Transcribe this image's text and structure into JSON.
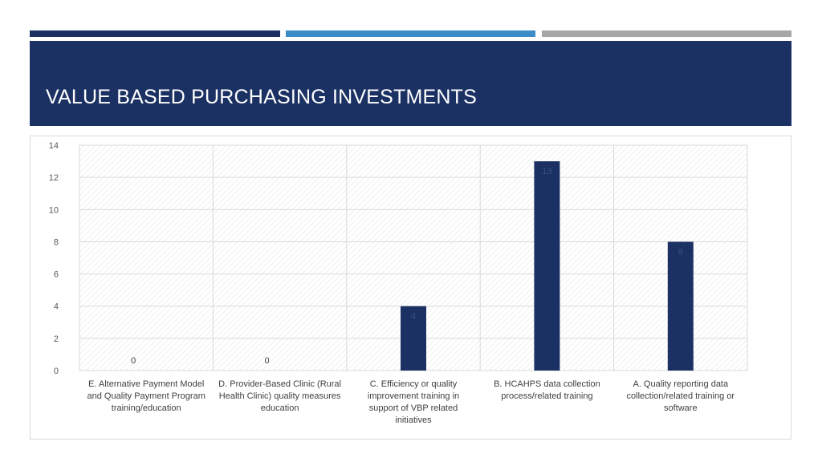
{
  "slide": {
    "title": "VALUE BASED PURCHASING INVESTMENTS"
  },
  "colors": {
    "primary": "#1c3163",
    "accent": "#3b8cc8",
    "neutral": "#a6a6a6",
    "bar": "#1c3163"
  },
  "chart_data": {
    "type": "bar",
    "categories": [
      "E. Alternative Payment Model and Quality Payment Program training/education",
      "D. Provider-Based Clinic (Rural Health Clinic) quality measures education",
      "C. Efficiency or quality improvement training in support of VBP related initiatives",
      "B. HCAHPS data collection process/related training",
      "A. Quality reporting data collection/related training or software"
    ],
    "category_lines": [
      [
        "E. Alternative Payment Model",
        "and Quality Payment Program",
        "training/education"
      ],
      [
        "D. Provider-Based Clinic (Rural",
        "Health Clinic) quality measures",
        "education"
      ],
      [
        "C. Efficiency or quality",
        "improvement training in",
        "support of VBP related",
        "initiatives"
      ],
      [
        "B. HCAHPS data collection",
        "process/related training"
      ],
      [
        "A. Quality reporting data",
        "collection/related training or",
        "software"
      ]
    ],
    "values": [
      0,
      0,
      4,
      13,
      8
    ],
    "data_labels": [
      "0",
      "0",
      "4",
      "13",
      "8"
    ],
    "ylim": [
      0,
      14
    ],
    "yticks": [
      0,
      2,
      4,
      6,
      8,
      10,
      12,
      14
    ],
    "grid": true,
    "legend": "none"
  }
}
